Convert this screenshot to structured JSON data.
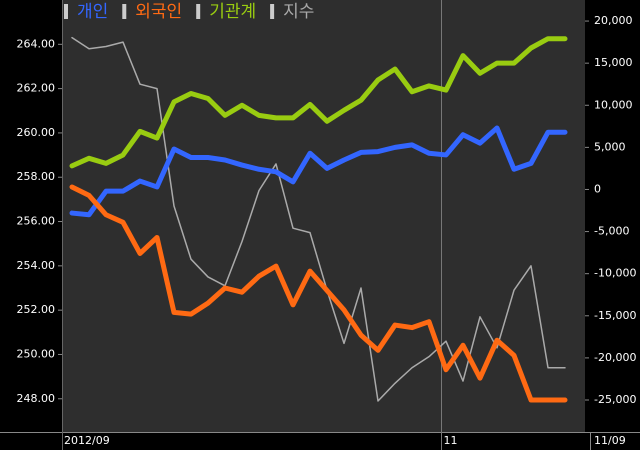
{
  "chart_data": {
    "type": "line",
    "categories": [
      "2012/09",
      null,
      null,
      null,
      null,
      null,
      null,
      null,
      null,
      null,
      null,
      null,
      null,
      null,
      null,
      null,
      null,
      null,
      null,
      null,
      null,
      null,
      "11",
      null,
      null,
      null,
      null,
      null,
      null,
      "11/09"
    ],
    "ylim": [
      246.5,
      266
    ],
    "yticks": [
      {
        "value": 248,
        "label": "248.00"
      },
      {
        "value": 250,
        "label": "250.00"
      },
      {
        "value": 252,
        "label": "252.00"
      },
      {
        "value": 254,
        "label": "254.00"
      },
      {
        "value": 256,
        "label": "256.00"
      },
      {
        "value": 258,
        "label": "258.00"
      },
      {
        "value": 260,
        "label": "260.00"
      },
      {
        "value": 262,
        "label": "262.00"
      },
      {
        "value": 264,
        "label": "264.00"
      }
    ],
    "y2lim": [
      -28800,
      22500
    ],
    "y2ticks": [
      {
        "value": -25000,
        "label": "-25,000"
      },
      {
        "value": -20000,
        "label": "-20,000"
      },
      {
        "value": -15000,
        "label": "-15,000"
      },
      {
        "value": -10000,
        "label": "-10,000"
      },
      {
        "value": -5000,
        "label": "-5,000"
      },
      0,
      {
        "value": 5000,
        "label": "5,000"
      },
      {
        "value": 10000,
        "label": "10,000"
      },
      {
        "value": 15000,
        "label": "15,000"
      },
      {
        "value": 20000,
        "label": "20,000"
      }
    ],
    "series": [
      {
        "name": "개인",
        "color": "#3366ff",
        "axis": "y2",
        "values": [
          -2800,
          -3000,
          -200,
          -200,
          1000,
          300,
          4800,
          3800,
          3800,
          3500,
          2900,
          2400,
          2100,
          900,
          4300,
          2500,
          3500,
          4400,
          4500,
          5000,
          5300,
          4300,
          4100,
          6500,
          5500,
          7300,
          2400,
          3100,
          6800,
          6800
        ]
      },
      {
        "name": "외국인",
        "color": "#ff6a13",
        "axis": "y2",
        "values": [
          300,
          -700,
          -3000,
          -3900,
          -7600,
          -5700,
          -14600,
          -14800,
          -13500,
          -11700,
          -12200,
          -10300,
          -9100,
          -13700,
          -9700,
          -12000,
          -14300,
          -17300,
          -19100,
          -16100,
          -16400,
          -15700,
          -21400,
          -18500,
          -22400,
          -17900,
          -19700,
          -25000,
          -25000,
          -25000
        ]
      },
      {
        "name": "기관계",
        "color": "#99cc11",
        "axis": "y2",
        "values": [
          2800,
          3700,
          3100,
          4100,
          6900,
          6100,
          10400,
          11400,
          10800,
          8800,
          10000,
          8800,
          8500,
          8500,
          10100,
          8100,
          9400,
          10600,
          13000,
          14300,
          11600,
          12300,
          11800,
          15900,
          13800,
          15000,
          15000,
          16800,
          17900,
          17900
        ]
      },
      {
        "name": "지수",
        "color": "#aaaaaa",
        "values": [
          264.3,
          263.8,
          263.9,
          264.1,
          262.2,
          262.0,
          256.7,
          254.3,
          253.5,
          253.1,
          255.1,
          257.4,
          258.6,
          255.7,
          255.5,
          252.9,
          250.5,
          253.0,
          247.9,
          248.7,
          249.4,
          249.9,
          250.6,
          248.8,
          251.7,
          250.3,
          252.9,
          254.0,
          249.4,
          249.4
        ]
      }
    ]
  }
}
